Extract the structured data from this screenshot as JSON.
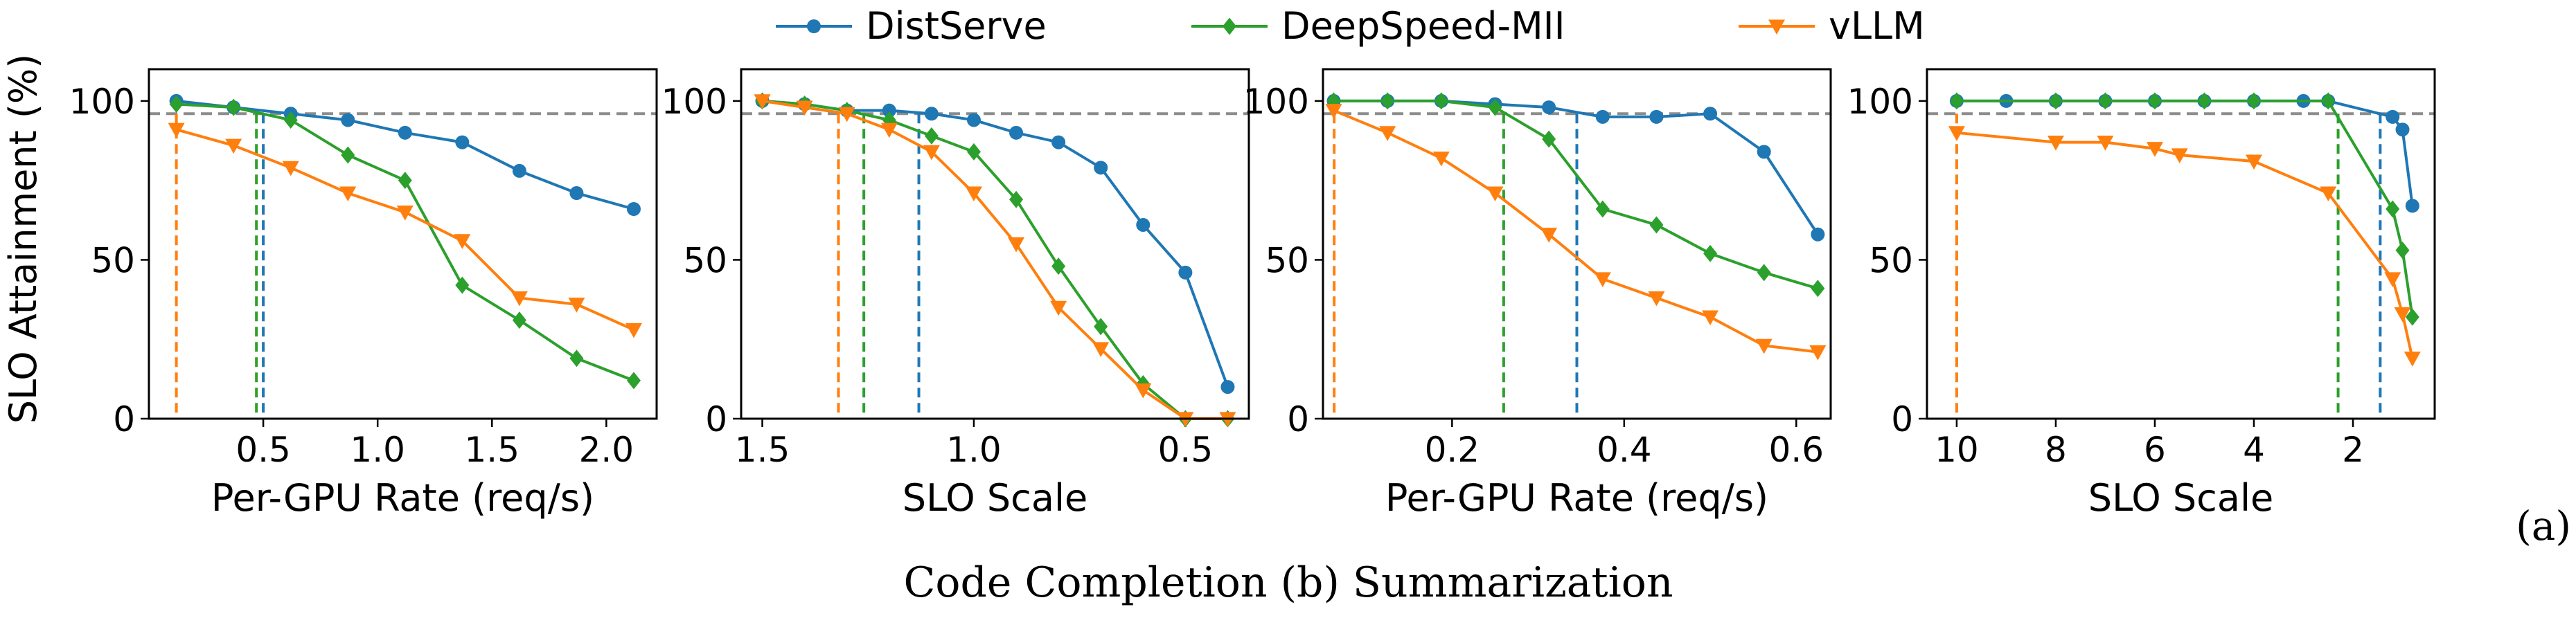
{
  "colors": {
    "DistServe": "#1f77b4",
    "DeepSpeed-MII": "#2ca02c",
    "vLLM": "#ff7f0e",
    "target_line": "#8c8c8c"
  },
  "legend": [
    {
      "name": "DistServe",
      "marker": "circle"
    },
    {
      "name": "DeepSpeed-MII",
      "marker": "diamond"
    },
    {
      "name": "vLLM",
      "marker": "triangle-down"
    }
  ],
  "labels": {
    "ylabel": "SLO Attainment (%)",
    "panel_tag": "(a)",
    "caption": "Code Completion (b) Summarization"
  },
  "chart_data": [
    {
      "type": "line",
      "xlabel": "Per-GPU Rate (req/s)",
      "xlim": [
        0.0,
        2.22
      ],
      "reversed": false,
      "xticks": [
        0.5,
        1.0,
        1.5,
        2.0
      ],
      "xticklabels": [
        "0.5",
        "1.0",
        "1.5",
        "2.0"
      ],
      "ylim": [
        0,
        110
      ],
      "yticks": [
        0,
        50,
        100
      ],
      "target": 96,
      "cutoffs": [
        {
          "series": "vLLM",
          "x": 0.12
        },
        {
          "series": "DeepSpeed-MII",
          "x": 0.47
        },
        {
          "series": "DistServe",
          "x": 0.5
        }
      ],
      "series": [
        {
          "name": "DistServe",
          "x": [
            0.12,
            0.37,
            0.62,
            0.87,
            1.12,
            1.37,
            1.62,
            1.87,
            2.12
          ],
          "y": [
            100,
            98,
            96,
            94,
            90,
            87,
            78,
            71,
            66
          ]
        },
        {
          "name": "DeepSpeed-MII",
          "x": [
            0.12,
            0.37,
            0.62,
            0.87,
            1.12,
            1.37,
            1.62,
            1.87,
            2.12
          ],
          "y": [
            99,
            98,
            94,
            83,
            75,
            42,
            31,
            19,
            12
          ]
        },
        {
          "name": "vLLM",
          "x": [
            0.12,
            0.37,
            0.62,
            0.87,
            1.12,
            1.37,
            1.62,
            1.87,
            2.12
          ],
          "y": [
            91,
            86,
            79,
            71,
            65,
            56,
            38,
            36,
            28
          ]
        }
      ]
    },
    {
      "type": "line",
      "xlabel": "SLO Scale",
      "xlim": [
        1.55,
        0.35
      ],
      "reversed": true,
      "xticks": [
        1.5,
        1.0,
        0.5
      ],
      "xticklabels": [
        "1.5",
        "1.0",
        "0.5"
      ],
      "ylim": [
        0,
        110
      ],
      "yticks": [
        0,
        50,
        100
      ],
      "target": 96,
      "cutoffs": [
        {
          "series": "vLLM",
          "x": 1.32
        },
        {
          "series": "DeepSpeed-MII",
          "x": 1.26
        },
        {
          "series": "DistServe",
          "x": 1.13
        }
      ],
      "series": [
        {
          "name": "DistServe",
          "x": [
            1.5,
            1.4,
            1.3,
            1.2,
            1.1,
            1.0,
            0.9,
            0.8,
            0.7,
            0.6,
            0.5,
            0.4
          ],
          "y": [
            100,
            99,
            97,
            97,
            96,
            94,
            90,
            87,
            79,
            61,
            46,
            10
          ]
        },
        {
          "name": "DeepSpeed-MII",
          "x": [
            1.5,
            1.4,
            1.3,
            1.2,
            1.1,
            1.0,
            0.9,
            0.8,
            0.7,
            0.6,
            0.5,
            0.4
          ],
          "y": [
            100,
            99,
            97,
            94,
            89,
            84,
            69,
            48,
            29,
            11,
            0,
            0
          ]
        },
        {
          "name": "vLLM",
          "x": [
            1.5,
            1.4,
            1.3,
            1.2,
            1.1,
            1.0,
            0.9,
            0.8,
            0.7,
            0.6,
            0.5,
            0.4
          ],
          "y": [
            100,
            98,
            96,
            91,
            84,
            71,
            55,
            35,
            22,
            9,
            0,
            0
          ]
        }
      ]
    },
    {
      "type": "line",
      "xlabel": "Per-GPU Rate (req/s)",
      "xlim": [
        0.05,
        0.64
      ],
      "reversed": false,
      "xticks": [
        0.2,
        0.4,
        0.6
      ],
      "xticklabels": [
        "0.2",
        "0.4",
        "0.6"
      ],
      "ylim": [
        0,
        110
      ],
      "yticks": [
        0,
        50,
        100
      ],
      "target": 96,
      "cutoffs": [
        {
          "series": "vLLM",
          "x": 0.063
        },
        {
          "series": "DeepSpeed-MII",
          "x": 0.26
        },
        {
          "series": "DistServe",
          "x": 0.345
        }
      ],
      "series": [
        {
          "name": "DistServe",
          "x": [
            0.0625,
            0.125,
            0.1875,
            0.25,
            0.3125,
            0.375,
            0.4375,
            0.5,
            0.5625,
            0.625
          ],
          "y": [
            100,
            100,
            100,
            99,
            98,
            95,
            95,
            96,
            84,
            58
          ]
        },
        {
          "name": "DeepSpeed-MII",
          "x": [
            0.0625,
            0.125,
            0.1875,
            0.25,
            0.3125,
            0.375,
            0.4375,
            0.5,
            0.5625,
            0.625
          ],
          "y": [
            100,
            100,
            100,
            98,
            88,
            66,
            61,
            52,
            46,
            41
          ]
        },
        {
          "name": "vLLM",
          "x": [
            0.0625,
            0.125,
            0.1875,
            0.25,
            0.3125,
            0.375,
            0.4375,
            0.5,
            0.5625,
            0.625
          ],
          "y": [
            97,
            90,
            82,
            71,
            58,
            44,
            38,
            32,
            23,
            21
          ]
        }
      ]
    },
    {
      "type": "line",
      "xlabel": "SLO Scale",
      "xlim": [
        10.6,
        0.35
      ],
      "reversed": true,
      "xticks": [
        10,
        8,
        6,
        4,
        2
      ],
      "xticklabels": [
        "10",
        "8",
        "6",
        "4",
        "2"
      ],
      "ylim": [
        0,
        110
      ],
      "yticks": [
        0,
        50,
        100
      ],
      "target": 96,
      "cutoffs": [
        {
          "series": "vLLM",
          "x": 10.0
        },
        {
          "series": "DeepSpeed-MII",
          "x": 2.3
        },
        {
          "series": "DistServe",
          "x": 1.45
        }
      ],
      "series": [
        {
          "name": "DistServe",
          "x": [
            10,
            9,
            8,
            7,
            6,
            5,
            4,
            3,
            2.5,
            1.2,
            1.0,
            0.8
          ],
          "y": [
            100,
            100,
            100,
            100,
            100,
            100,
            100,
            100,
            100,
            95,
            91,
            67
          ]
        },
        {
          "name": "DeepSpeed-MII",
          "x": [
            10,
            8,
            7,
            6,
            5,
            4,
            2.5,
            1.2,
            1.0,
            0.8
          ],
          "y": [
            100,
            100,
            100,
            100,
            100,
            100,
            100,
            66,
            53,
            32
          ]
        },
        {
          "name": "vLLM",
          "x": [
            10,
            8,
            7,
            6,
            5.5,
            4,
            2.5,
            1.2,
            1.0,
            0.8
          ],
          "y": [
            90,
            87,
            87,
            85,
            83,
            81,
            71,
            44,
            33,
            19
          ]
        }
      ]
    }
  ]
}
